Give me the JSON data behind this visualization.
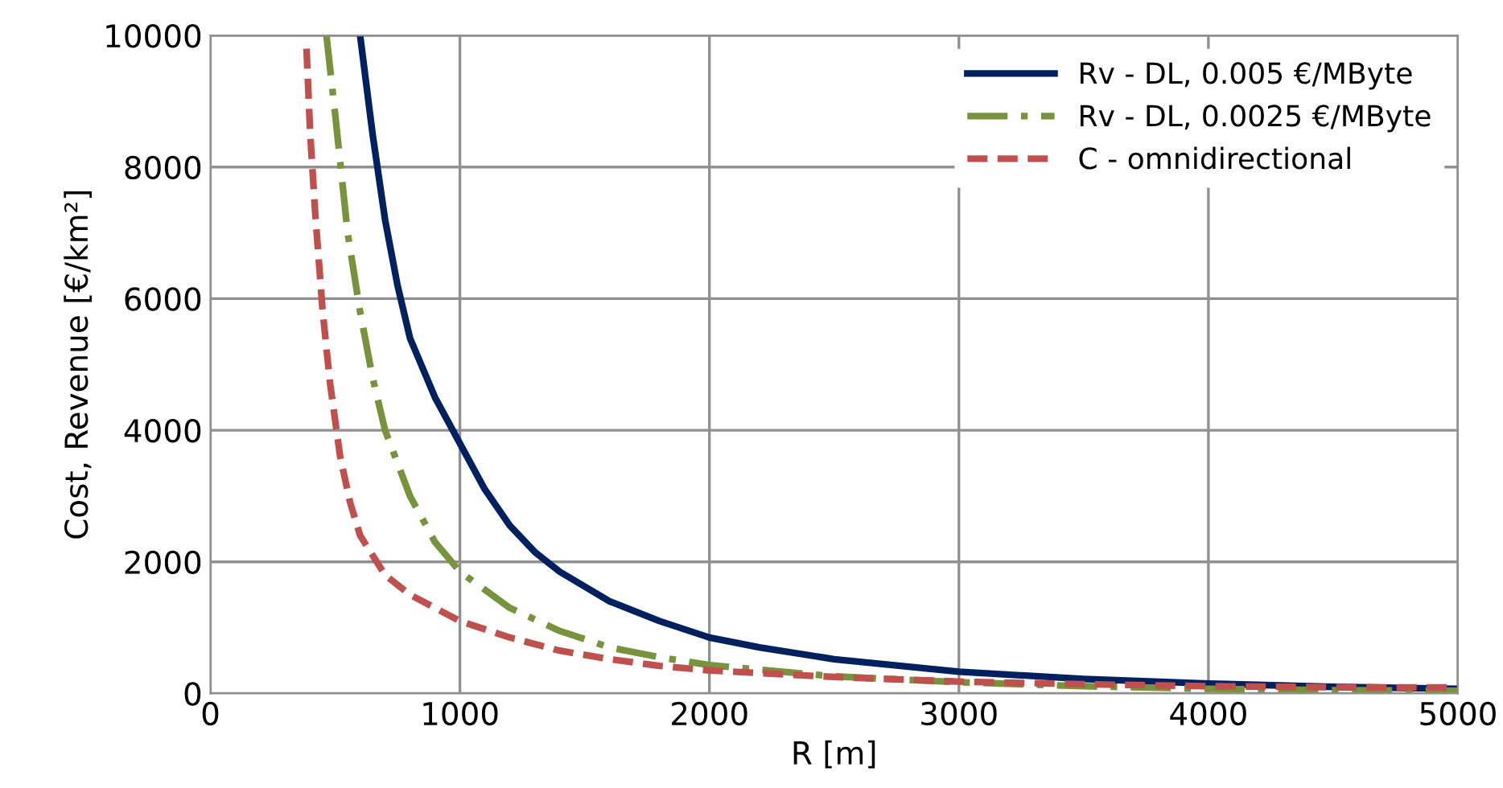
{
  "chart_data": {
    "type": "line",
    "xlabel": "R [m]",
    "ylabel": "Cost, Revenue [€/km²]",
    "xlim": [
      0,
      5000
    ],
    "ylim": [
      0,
      10000
    ],
    "xticks": [
      0,
      1000,
      2000,
      3000,
      4000,
      5000
    ],
    "yticks": [
      0,
      2000,
      4000,
      6000,
      8000,
      10000
    ],
    "grid": true,
    "legend": "top right",
    "series": [
      {
        "name": "Rv - DL, 0.005 €/MByte",
        "color": "#002060",
        "line_style": "solid",
        "x": [
          600,
          650,
          700,
          750,
          800,
          900,
          1000,
          1100,
          1200,
          1300,
          1400,
          1600,
          1800,
          2000,
          2200,
          2500,
          3000,
          3500,
          4000,
          4500,
          5000
        ],
        "values": [
          10000,
          8500,
          7200,
          6200,
          5400,
          4500,
          3800,
          3100,
          2550,
          2150,
          1850,
          1400,
          1100,
          850,
          700,
          520,
          330,
          220,
          150,
          100,
          70
        ]
      },
      {
        "name": "Rv - DL, 0.0025 €/MByte",
        "color": "#77933c",
        "line_style": "dashdot",
        "x": [
          465,
          500,
          550,
          600,
          650,
          700,
          800,
          900,
          1000,
          1200,
          1400,
          1600,
          1800,
          2000,
          2500,
          3000,
          3500,
          4000,
          4500,
          5000
        ],
        "values": [
          10000,
          8800,
          7000,
          5800,
          4800,
          4000,
          3000,
          2300,
          1850,
          1300,
          950,
          700,
          550,
          430,
          260,
          170,
          110,
          70,
          50,
          40
        ]
      },
      {
        "name": "C - omnidirectional",
        "color": "#c0504d",
        "line_style": "dashed",
        "x": [
          385,
          400,
          420,
          450,
          480,
          520,
          560,
          600,
          700,
          800,
          900,
          1000,
          1200,
          1400,
          1600,
          1800,
          2000,
          2500,
          3000,
          3500,
          4000,
          4500,
          5000
        ],
        "values": [
          9800,
          8500,
          7300,
          5800,
          4700,
          3600,
          2900,
          2400,
          1800,
          1500,
          1300,
          1100,
          850,
          650,
          520,
          420,
          350,
          250,
          180,
          140,
          110,
          95,
          90
        ]
      }
    ]
  }
}
